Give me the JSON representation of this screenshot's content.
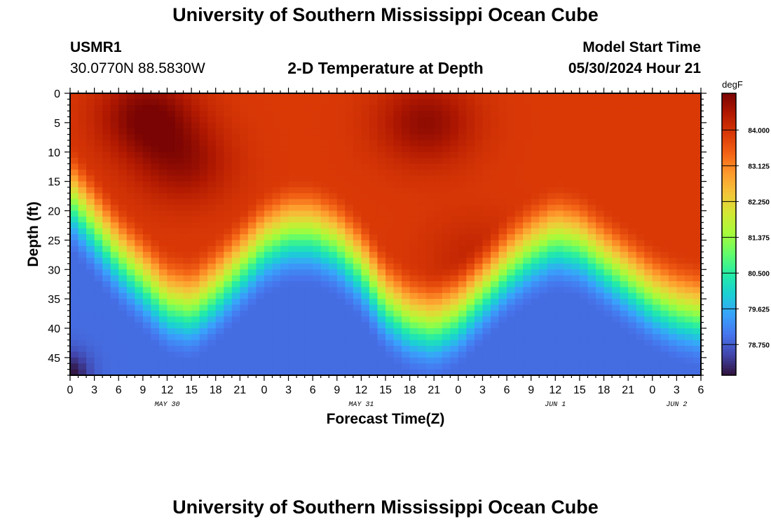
{
  "page": {
    "title_top": "University of Southern Mississippi Ocean Cube",
    "title_bottom": "University of Southern Mississippi Ocean Cube",
    "station_id": "USMR1",
    "station_coords": "30.0770N  88.5830W",
    "plot_title": "2-D Temperature at Depth",
    "model_start_label": "Model Start Time",
    "model_start_value": "05/30/2024 Hour 21"
  },
  "colors": {
    "scale": [
      "#30123b",
      "#4145ab",
      "#4675ed",
      "#39a2fc",
      "#1bcfd4",
      "#24eca6",
      "#61fc6c",
      "#a4fc3b",
      "#d1e834",
      "#f3c63a",
      "#fe9b2d",
      "#f36315",
      "#d93806",
      "#b11901",
      "#7a0403"
    ]
  },
  "chart_data": {
    "type": "heatmap",
    "title": "2-D Temperature at Depth",
    "xlabel": "Forecast Time(Z)",
    "ylabel": "Depth (ft)",
    "x_range_hours": [
      0,
      78
    ],
    "x_tick_hours": [
      0,
      3,
      6,
      9,
      12,
      15,
      18,
      21,
      24,
      27,
      30,
      33,
      36,
      39,
      42,
      45,
      48,
      51,
      54,
      57,
      60,
      63,
      66,
      69,
      72,
      75,
      78
    ],
    "x_tick_labels": [
      "0",
      "3",
      "6",
      "9",
      "12",
      "15",
      "18",
      "21",
      "0",
      "3",
      "6",
      "9",
      "12",
      "15",
      "18",
      "21",
      "0",
      "3",
      "6",
      "9",
      "12",
      "15",
      "18",
      "21",
      "0",
      "3",
      "6"
    ],
    "date_labels": [
      {
        "hour": 12,
        "label": "MAY 30"
      },
      {
        "hour": 36,
        "label": "MAY 31"
      },
      {
        "hour": 60,
        "label": "JUN 1"
      },
      {
        "hour": 75,
        "label": "JUN 2"
      }
    ],
    "y_range_ft": [
      0,
      48
    ],
    "y_tick_values": [
      0,
      5,
      10,
      15,
      20,
      25,
      30,
      35,
      40,
      45
    ],
    "y_tick_labels": [
      "0",
      "5",
      "10",
      "15",
      "20",
      "25",
      "30",
      "35",
      "40",
      "45"
    ],
    "colorbar": {
      "unit": "degF",
      "range": [
        78.0,
        84.9
      ],
      "tick_values": [
        78.75,
        79.625,
        80.5,
        81.375,
        82.25,
        83.125,
        84.0
      ],
      "tick_labels": [
        "78.750",
        "79.625",
        "80.500",
        "81.375",
        "82.250",
        "83.125",
        "84.000"
      ]
    },
    "thermocline_depth_ft": {
      "hours": [
        0,
        3,
        6,
        9,
        12,
        15,
        18,
        21,
        24,
        27,
        30,
        33,
        36,
        39,
        42,
        45,
        48,
        51,
        54,
        57,
        60,
        63,
        66,
        69,
        72,
        75,
        78
      ],
      "depth": [
        20,
        25,
        30,
        34,
        38,
        39,
        36,
        32,
        28,
        26,
        26,
        28,
        32,
        38,
        41,
        42,
        40,
        36,
        32,
        29,
        27,
        28,
        31,
        34,
        37,
        39,
        40
      ]
    },
    "warm_cores": [
      {
        "hour": 9.5,
        "depth_ft": 4,
        "value": 84.9
      },
      {
        "hour": 14,
        "depth_ft": 12,
        "value": 84.6
      },
      {
        "hour": 44,
        "depth_ft": 5,
        "value": 84.7
      },
      {
        "hour": 50,
        "depth_ft": 28,
        "value": 84.2
      }
    ],
    "values_above_thermocline_degF": 83.9,
    "values_near_bottom_degF": 78.9,
    "coldest_value_degF": 78.0
  }
}
